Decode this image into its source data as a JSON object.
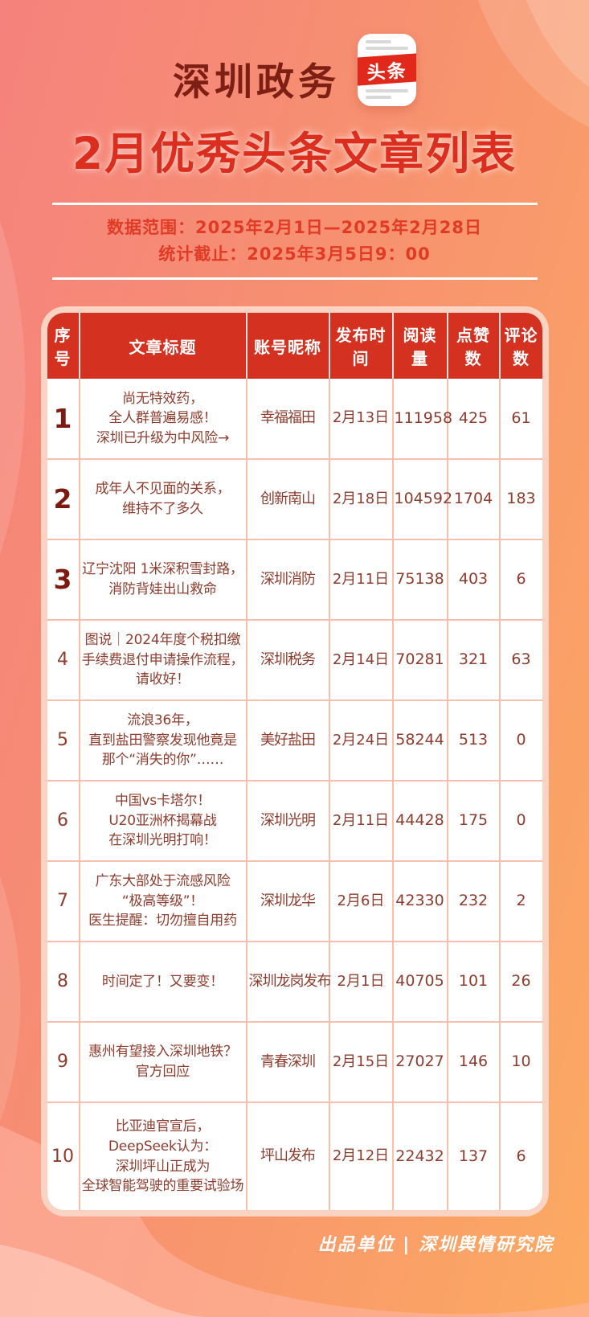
{
  "header": {
    "brand": "深圳政务",
    "logo_label": "头条",
    "title": "2月优秀头条文章列表",
    "date_range": "数据范围：2025年2月1日—2025年2月28日",
    "stat_deadline": "统计截止：2025年3月5日9：00"
  },
  "chart_data": {
    "type": "table",
    "title": "深圳政务2月优秀头条文章列表",
    "columns": [
      {
        "key": "rank",
        "label": "序号"
      },
      {
        "key": "title",
        "label": "文章标题"
      },
      {
        "key": "account",
        "label": "账号昵称"
      },
      {
        "key": "date",
        "label": "发布时间"
      },
      {
        "key": "reads",
        "label": "阅读量"
      },
      {
        "key": "likes",
        "label": "点赞数"
      },
      {
        "key": "comments",
        "label": "评论数"
      }
    ],
    "rows": [
      {
        "rank": "1",
        "top": true,
        "title": "尚无特效药，\n全人群普遍易感！\n深圳已升级为中风险→",
        "account": "幸福福田",
        "date": "2月13日",
        "reads": "111958",
        "likes": "425",
        "comments": "61"
      },
      {
        "rank": "2",
        "top": true,
        "title": "成年人不见面的关系，\n维持不了多久",
        "account": "创新南山",
        "date": "2月18日",
        "reads": "104592",
        "likes": "1704",
        "comments": "183"
      },
      {
        "rank": "3",
        "top": true,
        "title": "辽宁沈阳 1米深积雪封路，\n消防背娃出山救命",
        "account": "深圳消防",
        "date": "2月11日",
        "reads": "75138",
        "likes": "403",
        "comments": "6"
      },
      {
        "rank": "4",
        "top": false,
        "title": "图说｜2024年度个税扣缴\n手续费退付申请操作流程，\n请收好！",
        "account": "深圳税务",
        "date": "2月14日",
        "reads": "70281",
        "likes": "321",
        "comments": "63"
      },
      {
        "rank": "5",
        "top": false,
        "title": "流浪36年，\n直到盐田警察发现他竟是\n那个“消失的你”……",
        "account": "美好盐田",
        "date": "2月24日",
        "reads": "58244",
        "likes": "513",
        "comments": "0"
      },
      {
        "rank": "6",
        "top": false,
        "title": "中国vs卡塔尔！\nU20亚洲杯揭幕战\n在深圳光明打响！",
        "account": "深圳光明",
        "date": "2月11日",
        "reads": "44428",
        "likes": "175",
        "comments": "0"
      },
      {
        "rank": "7",
        "top": false,
        "title": "广东大部处于流感风险\n“极高等级”！\n医生提醒：切勿擅自用药",
        "account": "深圳龙华",
        "date": "2月6日",
        "reads": "42330",
        "likes": "232",
        "comments": "2"
      },
      {
        "rank": "8",
        "top": false,
        "title": "时间定了！又要变！",
        "account": "深圳龙岗发布",
        "date": "2月1日",
        "reads": "40705",
        "likes": "101",
        "comments": "26"
      },
      {
        "rank": "9",
        "top": false,
        "title": "惠州有望接入深圳地铁？\n官方回应",
        "account": "青春深圳",
        "date": "2月15日",
        "reads": "27027",
        "likes": "146",
        "comments": "10"
      },
      {
        "rank": "10",
        "top": false,
        "title": "比亚迪官宣后，\nDeepSeek认为：\n深圳坪山正成为\n全球智能驾驶的重要试验场",
        "account": "坪山发布",
        "date": "2月12日",
        "reads": "22432",
        "likes": "137",
        "comments": "6"
      }
    ]
  },
  "footer": {
    "credit": "出品单位 | 深圳舆情研究院"
  },
  "colors": {
    "title_red": "#dc2e1e",
    "brand_maroon": "#7d1f15",
    "table_header_red": "#d43120",
    "cell_text": "#8e3c2d",
    "grid_line": "#f8bfae",
    "frame_pink": "#fbd3c2",
    "meta_red": "#e13b26",
    "bg_left": "#f5827d",
    "bg_right": "#fcaa62",
    "logo_band_red": "#e2281b"
  }
}
